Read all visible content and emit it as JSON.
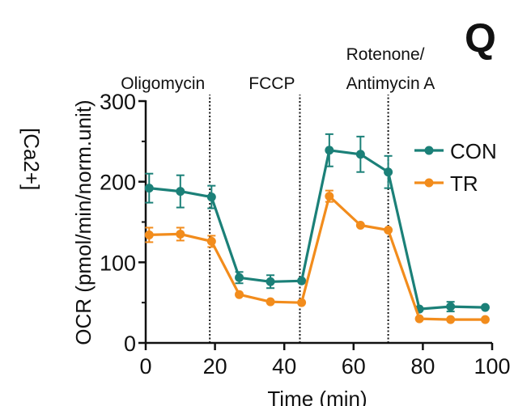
{
  "panel_letter": "Q",
  "side_label": "[Ca2+]",
  "chart_data": {
    "type": "line",
    "title": "",
    "xlabel": "Time (min)",
    "ylabel": "OCR (pmol/min/norm.unit)",
    "xlim": [
      0,
      100
    ],
    "ylim": [
      0,
      300
    ],
    "xticks": [
      0,
      20,
      40,
      60,
      80,
      100
    ],
    "yticks": [
      0,
      100,
      200,
      300
    ],
    "x": [
      1,
      10,
      19,
      27,
      36,
      45,
      53,
      62,
      70,
      79,
      88,
      98
    ],
    "series": [
      {
        "name": "CON",
        "color": "#1b8078",
        "values": [
          192,
          188,
          181,
          81,
          76,
          77,
          239,
          234,
          212,
          42,
          45,
          44
        ],
        "errors": [
          18,
          20,
          14,
          7,
          8,
          0,
          20,
          22,
          20,
          0,
          6,
          0
        ]
      },
      {
        "name": "TR",
        "color": "#f28c1c",
        "values": [
          134,
          135,
          126,
          60,
          51,
          50,
          182,
          146,
          140,
          30,
          29,
          29
        ],
        "errors": [
          9,
          8,
          7,
          0,
          0,
          0,
          7,
          0,
          0,
          0,
          0,
          0
        ]
      }
    ],
    "annotations": [
      {
        "x": 18.5,
        "lines": [
          "Oligomycin"
        ]
      },
      {
        "x": 44.5,
        "lines": [
          "FCCP"
        ]
      },
      {
        "x": 70,
        "lines": [
          "Rotenone/",
          "Antimycin A"
        ]
      }
    ],
    "legend_position": "right"
  }
}
